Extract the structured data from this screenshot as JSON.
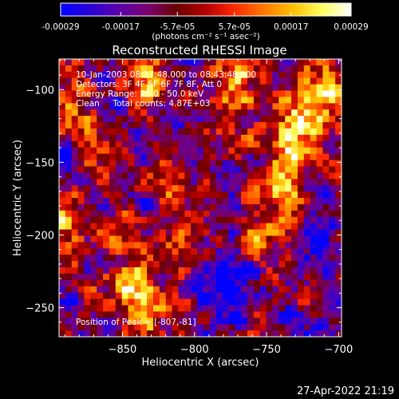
{
  "colorbar": {
    "tick_labels": [
      "-0.00029",
      "-0.00017",
      "-5.7e-05",
      "5.7e-05",
      "0.00017",
      "0.00029"
    ],
    "tick_values": [
      -0.00029,
      -0.00017,
      -5.7e-05,
      5.7e-05,
      0.00017,
      0.00029
    ],
    "range": [
      -0.00029,
      0.00029
    ],
    "unit_label": "(photons cm⁻² s⁻¹ asec⁻²)",
    "colors": [
      "#0000ff",
      "#2a00d8",
      "#5a00a8",
      "#7a0070",
      "#6a0000",
      "#b40000",
      "#ff2a00",
      "#ff7a00",
      "#ffc000",
      "#ffff60",
      "#ffffff"
    ]
  },
  "chart_data": {
    "type": "heatmap",
    "title": "Reconstructed RHESSI Image",
    "xlabel": "Heliocentric X (arcsec)",
    "ylabel": "Heliocentric Y (arcsec)",
    "xlim": [
      -894,
      -698
    ],
    "ylim": [
      -270,
      -79
    ],
    "x_ticks": [
      -850,
      -800,
      -750,
      -700
    ],
    "x_tick_labels": [
      "−850",
      "−800",
      "−750",
      "−700"
    ],
    "y_ticks": [
      -100,
      -150,
      -200,
      -250
    ],
    "y_tick_labels": [
      "−100",
      "−150",
      "−200",
      "−250"
    ],
    "annotations": [
      "10-Jan-2003 08:37:48.000 to 08:43:48.000",
      "Detectors: 3F 4F 5F 6F 7F 8F, Att 0",
      "Energy Range: 25.0 - 50.0 keV",
      "Clean     Total counts: 4.87E+03"
    ],
    "peak_label": "Position of Peak = [-807,-81]",
    "grid": false
  },
  "footer": {
    "timestamp": "27-Apr-2022 21:19"
  }
}
